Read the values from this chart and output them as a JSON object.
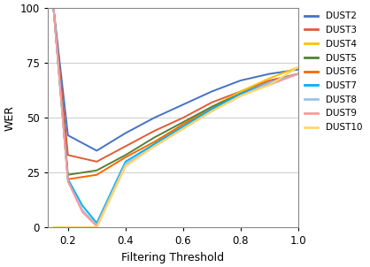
{
  "title": "",
  "xlabel": "Filtering Threshold",
  "ylabel": "WER",
  "xlim": [
    0.13,
    1.0
  ],
  "ylim": [
    0,
    100
  ],
  "xticks": [
    0.2,
    0.4,
    0.6,
    0.8,
    1.0
  ],
  "yticks": [
    0,
    25,
    50,
    75,
    100
  ],
  "series": {
    "DUST2": {
      "color": "#4472C4",
      "x": [
        0.15,
        0.2,
        0.3,
        0.4,
        0.5,
        0.6,
        0.7,
        0.8,
        0.9,
        1.0
      ],
      "y": [
        100,
        42,
        35,
        43,
        50,
        56,
        62,
        67,
        70,
        72
      ]
    },
    "DUST3": {
      "color": "#E05C3A",
      "x": [
        0.15,
        0.2,
        0.3,
        0.4,
        0.5,
        0.6,
        0.7,
        0.8,
        0.9,
        1.0
      ],
      "y": [
        100,
        33,
        30,
        37,
        44,
        50,
        57,
        62,
        67,
        70
      ]
    },
    "DUST4": {
      "color": "#FFC000",
      "x": [
        0.15,
        0.2,
        0.25,
        0.3,
        0.4,
        0.5,
        0.6,
        0.7,
        0.8,
        0.9,
        1.0
      ],
      "y": [
        0,
        0,
        0,
        0,
        28,
        38,
        47,
        55,
        62,
        68,
        73
      ]
    },
    "DUST5": {
      "color": "#548235",
      "x": [
        0.15,
        0.2,
        0.3,
        0.4,
        0.5,
        0.6,
        0.7,
        0.8,
        0.9,
        1.0
      ],
      "y": [
        100,
        24,
        26,
        33,
        41,
        48,
        55,
        61,
        66,
        70
      ]
    },
    "DUST6": {
      "color": "#FF6600",
      "x": [
        0.15,
        0.2,
        0.3,
        0.4,
        0.5,
        0.6,
        0.7,
        0.8,
        0.9,
        1.0
      ],
      "y": [
        100,
        22,
        24,
        32,
        39,
        47,
        54,
        61,
        66,
        70
      ]
    },
    "DUST7": {
      "color": "#00B0F0",
      "x": [
        0.15,
        0.2,
        0.25,
        0.3,
        0.4,
        0.5,
        0.6,
        0.7,
        0.8,
        0.9,
        1.0
      ],
      "y": [
        100,
        22,
        10,
        2,
        30,
        38,
        46,
        54,
        61,
        66,
        70
      ]
    },
    "DUST8": {
      "color": "#9DC3E6",
      "x": [
        0.15,
        0.2,
        0.25,
        0.3,
        0.4,
        0.5,
        0.6,
        0.7,
        0.8,
        0.9,
        1.0
      ],
      "y": [
        100,
        21,
        8,
        1,
        29,
        37,
        45,
        53,
        60,
        66,
        70
      ]
    },
    "DUST9": {
      "color": "#FF9999",
      "x": [
        0.15,
        0.2,
        0.25,
        0.3,
        0.4,
        0.5,
        0.6,
        0.7,
        0.8,
        0.9,
        1.0
      ],
      "y": [
        100,
        21,
        7,
        0.5,
        28,
        37,
        45,
        53,
        60,
        65,
        70
      ]
    },
    "DUST10": {
      "color": "#FFD966",
      "x": [
        0.15,
        0.2,
        0.25,
        0.3,
        0.4,
        0.5,
        0.6,
        0.7,
        0.8,
        0.9,
        1.0
      ],
      "y": [
        0,
        0,
        0,
        0,
        28,
        37,
        45,
        53,
        60,
        65,
        73
      ]
    }
  },
  "legend_order": [
    "DUST2",
    "DUST3",
    "DUST4",
    "DUST5",
    "DUST6",
    "DUST7",
    "DUST8",
    "DUST9",
    "DUST10"
  ],
  "grid_color": "#CCCCCC",
  "background_color": "#FFFFFF"
}
